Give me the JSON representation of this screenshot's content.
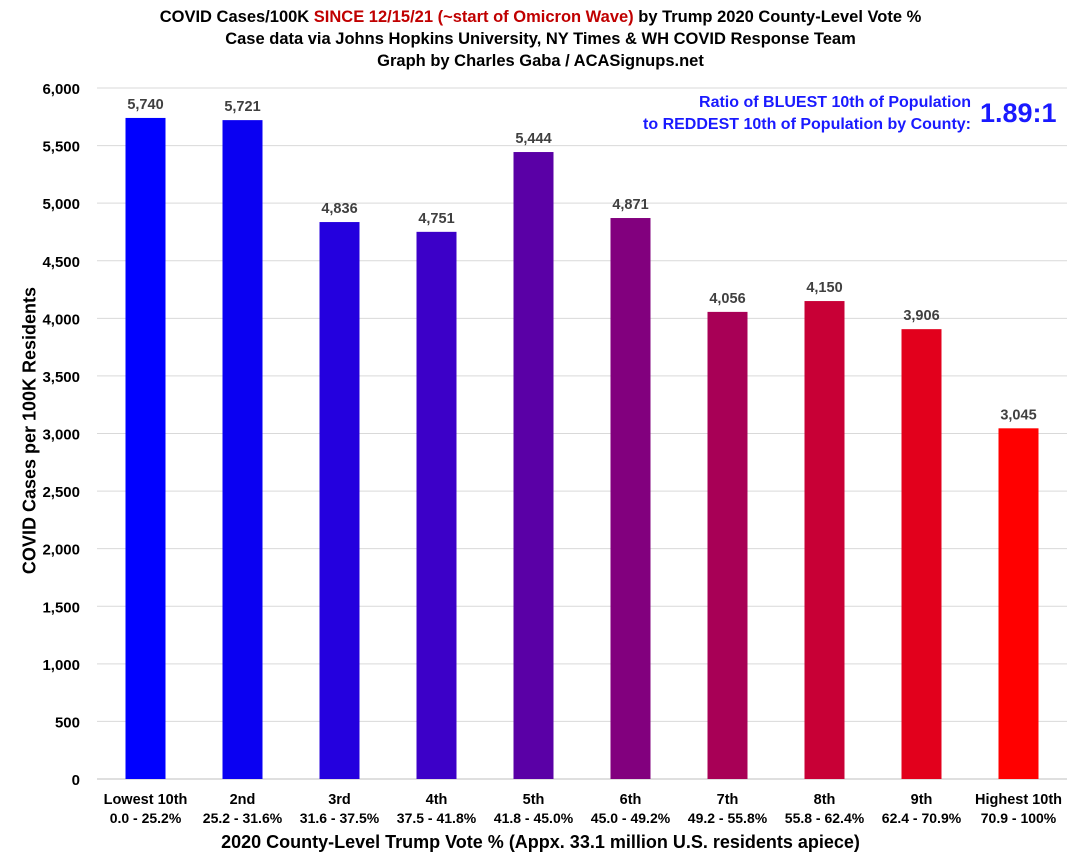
{
  "chart_data": {
    "type": "bar",
    "title": {
      "line1_pre": "COVID Cases/100K ",
      "line1_highlight": "SINCE 12/15/21 (~start of Omicron Wave)",
      "line1_post": " by Trump 2020 County-Level Vote %",
      "line2": "Case data via Johns Hopkins University, NY Times & WH COVID Response Team",
      "line3": "Graph by Charles Gaba / ACASignups.net"
    },
    "annotation": {
      "line1": "Ratio of BLUEST 10th of Population",
      "line2": "to REDDEST 10th of Population by County:",
      "value": "1.89:1"
    },
    "xlabel": "2020 County-Level Trump Vote % (Appx. 33.1 million U.S. residents apiece)",
    "ylabel": "COVID Cases per 100K Residents",
    "ylim": [
      0,
      6000
    ],
    "yticks": [
      "0",
      "500",
      "1,000",
      "1,500",
      "2,000",
      "2,500",
      "3,000",
      "3,500",
      "4,000",
      "4,500",
      "5,000",
      "5,500",
      "6,000"
    ],
    "grid": true,
    "categories": [
      "Lowest 10th",
      "2nd",
      "3rd",
      "4th",
      "5th",
      "6th",
      "7th",
      "8th",
      "9th",
      "Highest 10th"
    ],
    "category_ranges": [
      "0.0 - 25.2%",
      "25.2 - 31.6%",
      "31.6 - 37.5%",
      "37.5 - 41.8%",
      "41.8 - 45.0%",
      "45.0 - 49.2%",
      "49.2 - 55.8%",
      "55.8 - 62.4%",
      "62.4 - 70.9%",
      "70.9 - 100%"
    ],
    "values": [
      5740,
      5721,
      4836,
      4751,
      5444,
      4871,
      4056,
      4150,
      3906,
      3045
    ],
    "data_labels": [
      "5,740",
      "5,721",
      "4,836",
      "4,751",
      "5,444",
      "4,871",
      "4,056",
      "4,150",
      "3,906",
      "3,045"
    ],
    "colors": [
      "#0000ff",
      "#0a00f2",
      "#2400de",
      "#3c00c8",
      "#5a00a6",
      "#82007e",
      "#a80056",
      "#c80036",
      "#e2001c",
      "#ff0000"
    ]
  }
}
